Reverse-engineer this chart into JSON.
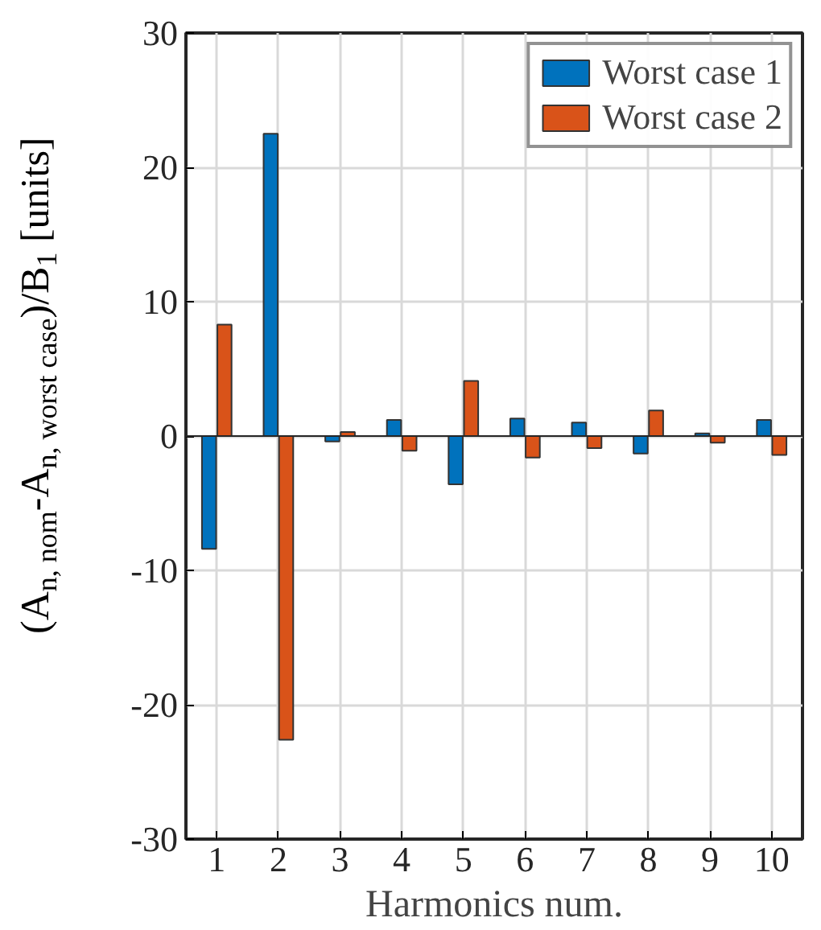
{
  "chart_data": {
    "type": "bar",
    "categories": [
      "1",
      "2",
      "3",
      "4",
      "5",
      "6",
      "7",
      "8",
      "9",
      "10"
    ],
    "series": [
      {
        "name": "Worst case 1",
        "color": "#0072bd",
        "values": [
          -8.4,
          22.5,
          -0.4,
          1.2,
          -3.6,
          1.3,
          1.0,
          -1.3,
          0.2,
          1.2
        ]
      },
      {
        "name": "Worst case 2",
        "color": "#d95319",
        "values": [
          8.3,
          -22.6,
          0.3,
          -1.1,
          4.1,
          -1.6,
          -0.9,
          1.9,
          -0.5,
          -1.4
        ]
      }
    ],
    "xlabel": "Harmonics num.",
    "ylabel": "(A$_{n, nom}$-A$_{n, worst case}$)/B$_{1}$ [units]",
    "ylim": [
      -30,
      30
    ],
    "yticks": [
      -30,
      -20,
      -10,
      0,
      10,
      20,
      30
    ],
    "grid": true,
    "legend": "top right"
  }
}
